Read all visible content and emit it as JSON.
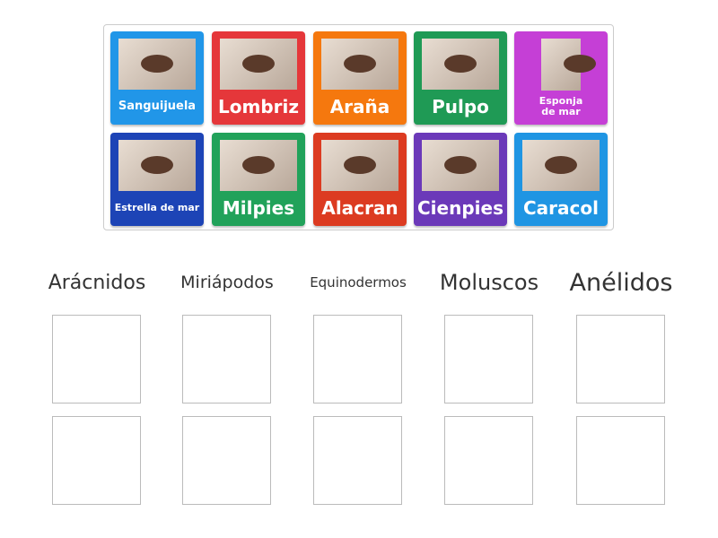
{
  "tiles": [
    {
      "label": "Sanguijuela",
      "color": "#2196e8"
    },
    {
      "label": "Lombriz",
      "color": "#e5373a"
    },
    {
      "label": "Araña",
      "color": "#f5780e"
    },
    {
      "label": "Pulpo",
      "color": "#1f9a55"
    },
    {
      "label": "Esponja de mar",
      "color": "#c53fd6"
    },
    {
      "label": "Estrella de mar",
      "color": "#1d44b6"
    },
    {
      "label": "Milpies",
      "color": "#21a25a"
    },
    {
      "label": "Alacran",
      "color": "#dc3b21"
    },
    {
      "label": "Cienpies",
      "color": "#6b39b9"
    },
    {
      "label": "Caracol",
      "color": "#1f95e3"
    }
  ],
  "groups": [
    "Arácnidos",
    "Miriápodos",
    "Equinodermos",
    "Moluscos",
    "Anélidos"
  ]
}
